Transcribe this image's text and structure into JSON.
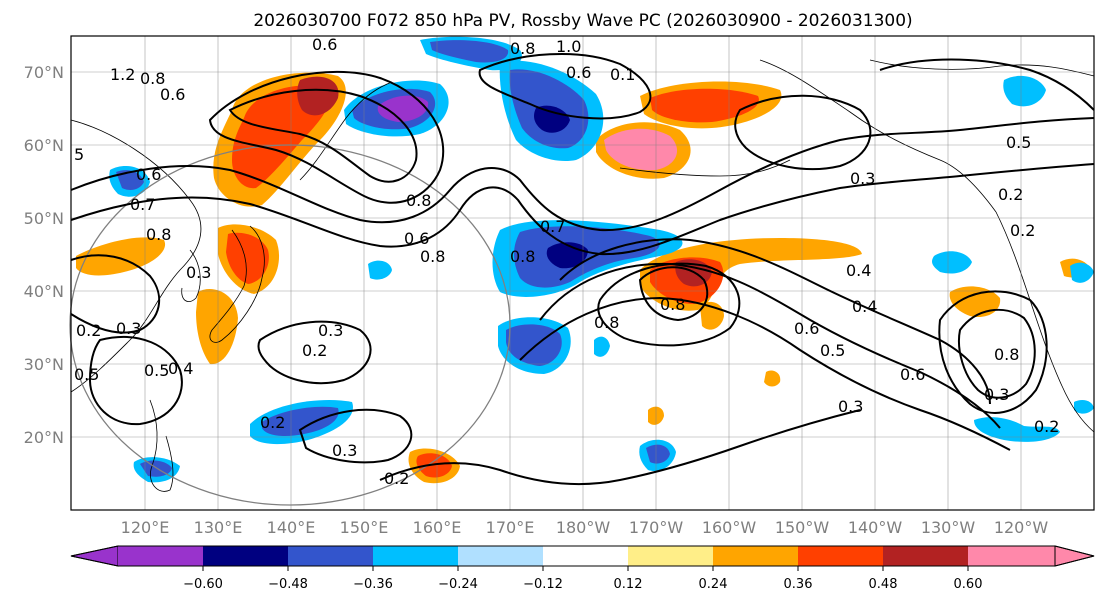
{
  "title": "2026030700 F072 850 hPa PV, Rossby Wave PC (2026030900 - 2026031300)",
  "map": {
    "lat_labels": [
      "70°N",
      "60°N",
      "50°N",
      "40°N",
      "30°N",
      "20°N"
    ],
    "lon_labels": [
      "120°E",
      "130°E",
      "140°E",
      "150°E",
      "160°E",
      "170°E",
      "180°W",
      "170°W",
      "160°W",
      "150°W",
      "140°W",
      "130°W",
      "120°W"
    ]
  },
  "colorbar": {
    "ticks": [
      "−0.60",
      "−0.48",
      "−0.36",
      "−0.24",
      "−0.12",
      "0.12",
      "0.24",
      "0.36",
      "0.48",
      "0.60"
    ],
    "colors": {
      "under": "#9933cc",
      "b1": "#000080",
      "b2": "#3355cc",
      "b3": "#00bfff",
      "b4": "#b0e0ff",
      "b5": "#ffffff",
      "b6": "#ffee88",
      "b7": "#ffa500",
      "b8": "#ff4000",
      "b9": "#b22222",
      "over": "#ff88aa"
    }
  },
  "contour_labels": [
    {
      "text": "0.6"
    },
    {
      "text": "1.2"
    },
    {
      "text": "0.8"
    },
    {
      "text": "0.6"
    },
    {
      "text": "1.0"
    },
    {
      "text": "0.8"
    },
    {
      "text": "0.6"
    },
    {
      "text": "0.1"
    },
    {
      "text": "5"
    },
    {
      "text": "0.6"
    },
    {
      "text": "0.7"
    },
    {
      "text": "0.8"
    },
    {
      "text": "0.3"
    },
    {
      "text": "0.3"
    },
    {
      "text": "0.2"
    },
    {
      "text": "0.5"
    },
    {
      "text": "0.4"
    },
    {
      "text": "0.5"
    },
    {
      "text": "0.2"
    },
    {
      "text": "0.3"
    },
    {
      "text": "0.2"
    },
    {
      "text": "0.8"
    },
    {
      "text": "0.8"
    },
    {
      "text": "0.6"
    },
    {
      "text": "0.7"
    },
    {
      "text": "0.8"
    },
    {
      "text": "0.4"
    },
    {
      "text": "0.4"
    },
    {
      "text": "0.6"
    },
    {
      "text": "0.5"
    },
    {
      "text": "0.3"
    },
    {
      "text": "0.6"
    },
    {
      "text": "0.3"
    },
    {
      "text": "0.2"
    },
    {
      "text": "0.3"
    },
    {
      "text": "0.2"
    },
    {
      "text": "0.5"
    },
    {
      "text": "0.2"
    },
    {
      "text": "0.3"
    },
    {
      "text": "0.2"
    },
    {
      "text": "0.8"
    },
    {
      "text": "0.8"
    },
    {
      "text": "0.8"
    }
  ]
}
